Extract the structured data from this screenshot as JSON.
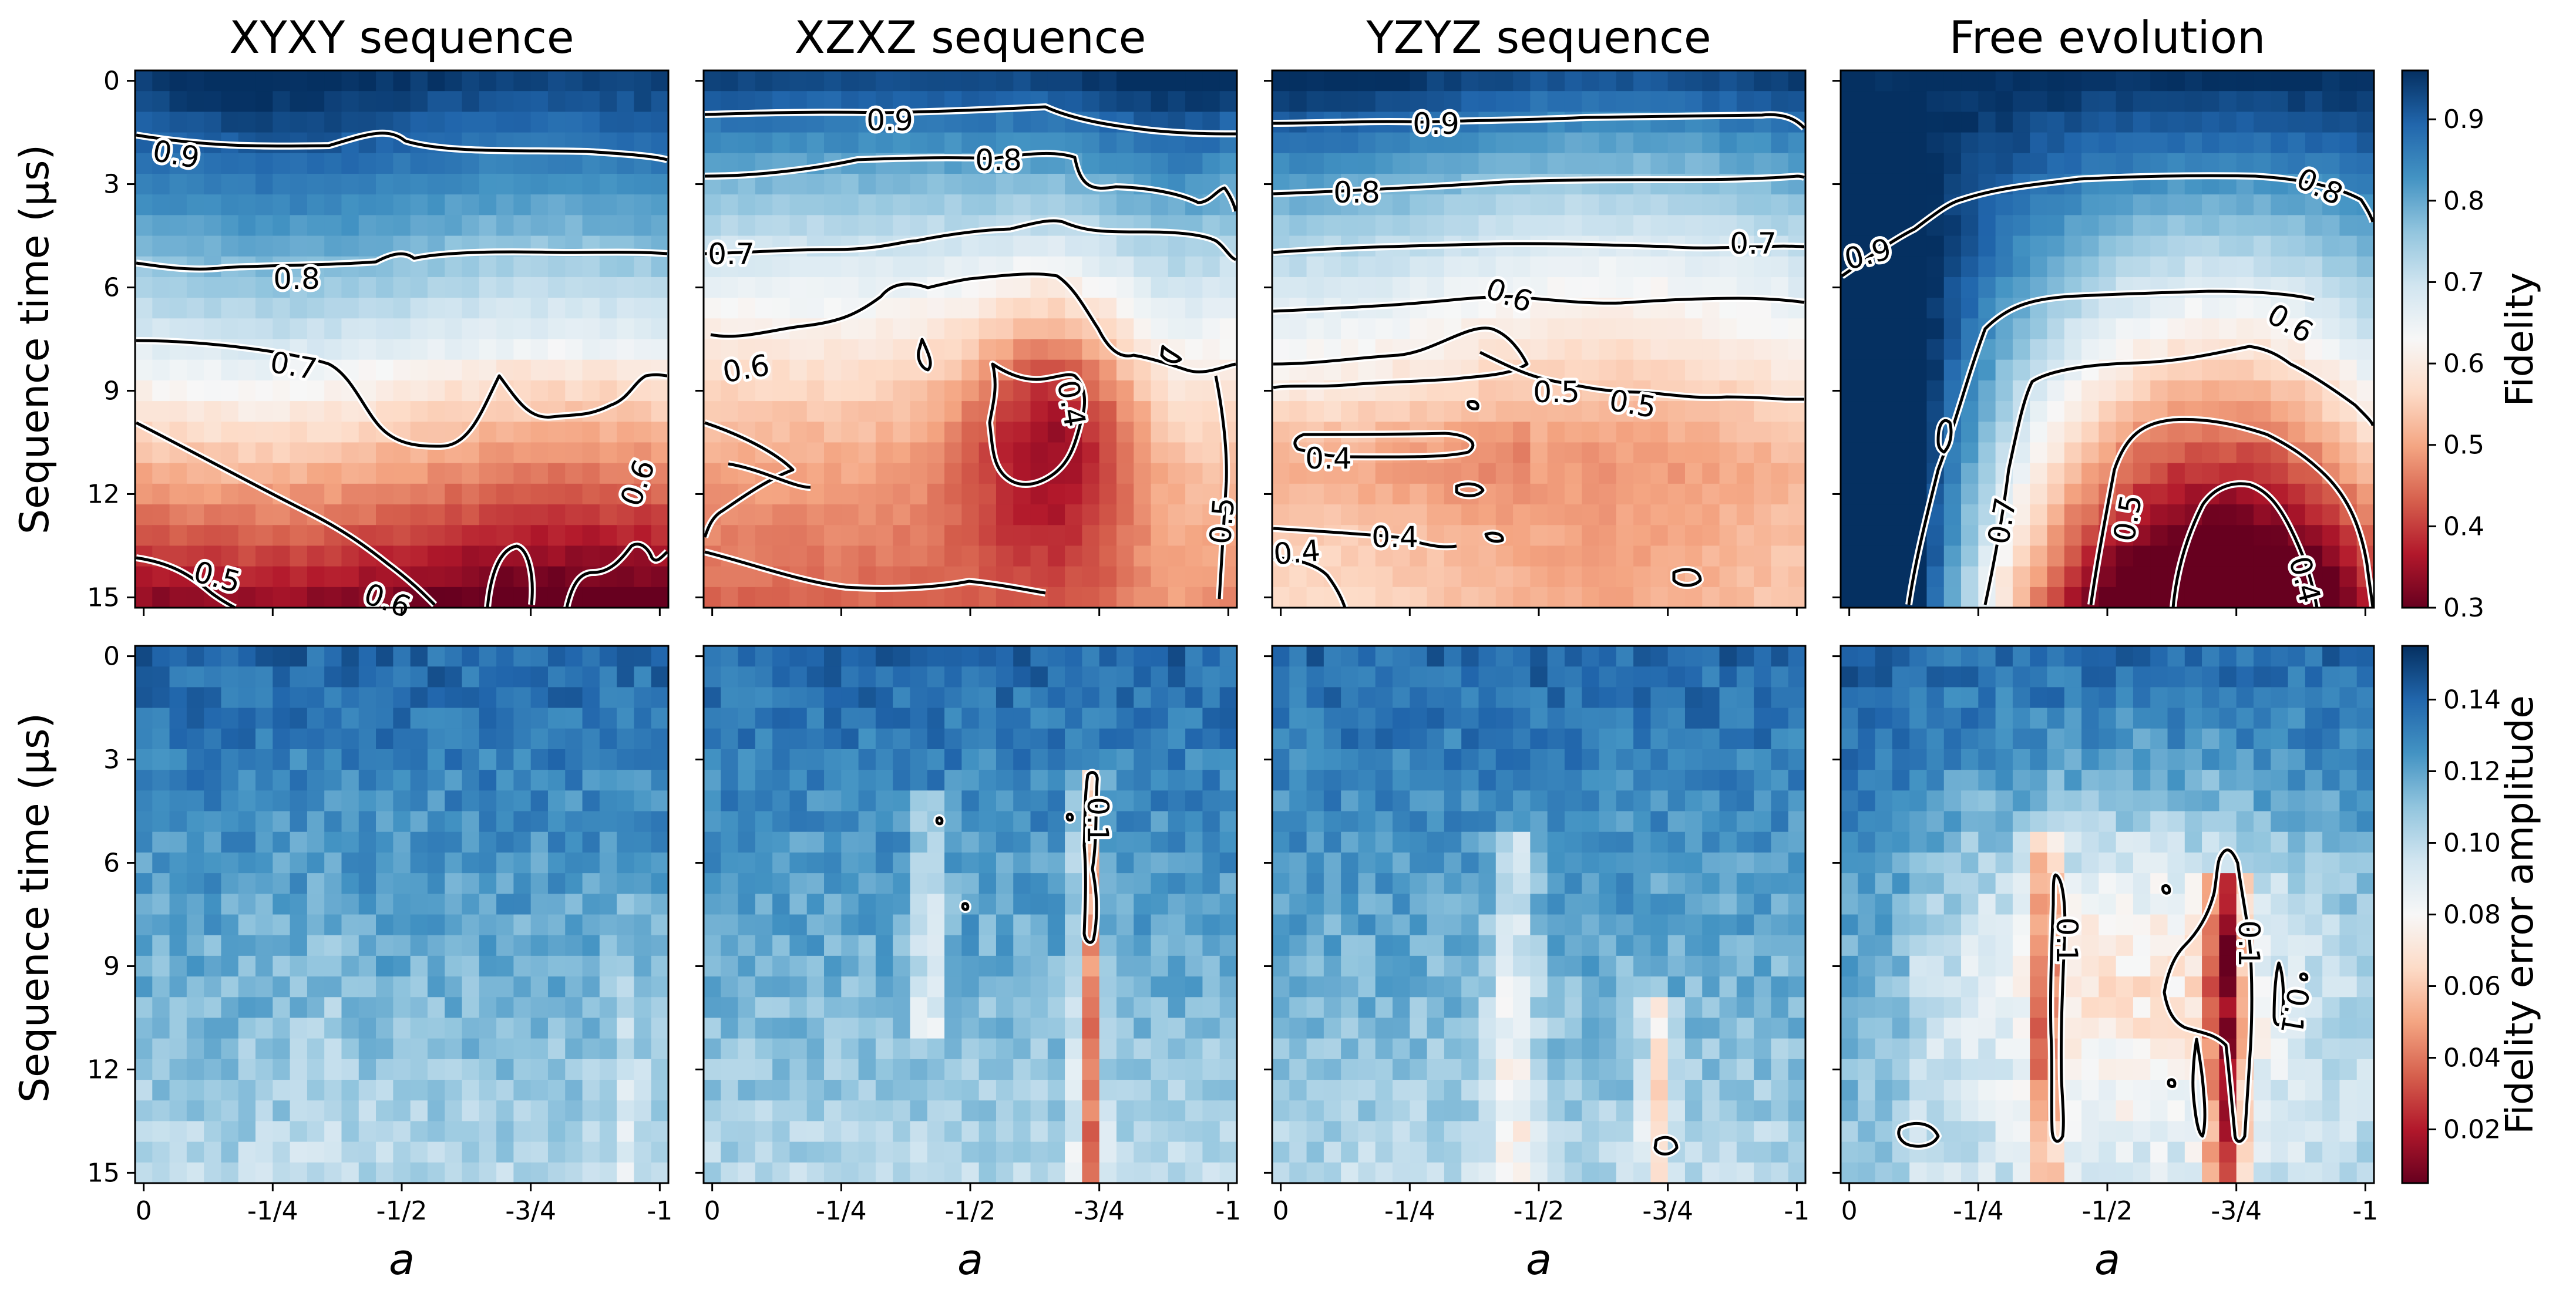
{
  "figure": {
    "panel_titles": [
      "XYXY sequence",
      "XZXZ sequence",
      "YZYZ sequence",
      "Free evolution"
    ],
    "colors": {
      "fidelity_low": "#67001f",
      "fidelity_mid": "#f7f7f7",
      "fidelity_high": "#053061",
      "contour_line": "#000000",
      "contour_halo": "#ffffff"
    }
  },
  "chart_data": [
    {
      "type": "heatmap",
      "row": "top",
      "title": "XYXY sequence",
      "metric": "Fidelity",
      "ylabel": "Sequence time (μs)",
      "xlabel": "a",
      "x_ticks": [
        "0",
        "-1/4",
        "-1/2",
        "-3/4",
        "-1"
      ],
      "y_ticks": [
        "0",
        "3",
        "6",
        "9",
        "12",
        "15"
      ],
      "xlim": [
        0,
        -1
      ],
      "ylim": [
        0,
        15
      ],
      "contour_levels": [
        0.5,
        0.6,
        0.7,
        0.8,
        0.9
      ],
      "contour_labels": [
        "0.9",
        "0.8",
        "0.7",
        "0.6",
        "0.6",
        "0.5"
      ]
    },
    {
      "type": "heatmap",
      "row": "top",
      "title": "XZXZ sequence",
      "metric": "Fidelity",
      "xlabel": "a",
      "x_ticks": [
        "0",
        "-1/4",
        "-1/2",
        "-3/4",
        "-1"
      ],
      "xlim": [
        0,
        -1
      ],
      "ylim": [
        0,
        15
      ],
      "contour_levels": [
        0.4,
        0.5,
        0.6,
        0.7,
        0.8,
        0.9
      ],
      "contour_labels": [
        "0.9",
        "0.8",
        "0.7",
        "0.6",
        "0.4",
        "0.5"
      ]
    },
    {
      "type": "heatmap",
      "row": "top",
      "title": "YZYZ sequence",
      "metric": "Fidelity",
      "xlabel": "a",
      "x_ticks": [
        "0",
        "-1/4",
        "-1/2",
        "-3/4",
        "-1"
      ],
      "xlim": [
        0,
        -1
      ],
      "ylim": [
        0,
        15
      ],
      "contour_levels": [
        0.4,
        0.5,
        0.6,
        0.7,
        0.8,
        0.9
      ],
      "contour_labels": [
        "0.9",
        "0.8",
        "0.7",
        "0.6",
        "0.5",
        "0.5",
        "0.4",
        "0.4",
        "0.4"
      ]
    },
    {
      "type": "heatmap",
      "row": "top",
      "title": "Free evolution",
      "metric": "Fidelity",
      "xlabel": "a",
      "x_ticks": [
        "0",
        "-1/4",
        "-1/2",
        "-3/4",
        "-1"
      ],
      "xlim": [
        0,
        -1
      ],
      "ylim": [
        0,
        15
      ],
      "contour_levels": [
        0.4,
        0.5,
        0.6,
        0.7,
        0.8,
        0.9
      ],
      "contour_labels": [
        "0.9",
        "0.8",
        "0.6",
        "0.7",
        "0.5",
        "0.4"
      ]
    },
    {
      "type": "heatmap",
      "row": "bottom",
      "panel": "XYXY sequence",
      "metric": "Fidelity error amplitude",
      "ylabel": "Sequence time (μs)",
      "xlabel": "a",
      "x_ticks": [
        "0",
        "-1/4",
        "-1/2",
        "-3/4",
        "-1"
      ],
      "y_ticks": [
        "0",
        "3",
        "6",
        "9",
        "12",
        "15"
      ],
      "xlim": [
        0,
        -1
      ],
      "ylim": [
        0,
        15
      ],
      "contour_levels": [],
      "contour_labels": []
    },
    {
      "type": "heatmap",
      "row": "bottom",
      "panel": "XZXZ sequence",
      "metric": "Fidelity error amplitude",
      "xlabel": "a",
      "x_ticks": [
        "0",
        "-1/4",
        "-1/2",
        "-3/4",
        "-1"
      ],
      "xlim": [
        0,
        -1
      ],
      "ylim": [
        0,
        15
      ],
      "contour_levels": [
        0.1
      ],
      "contour_labels": [
        "0.1"
      ]
    },
    {
      "type": "heatmap",
      "row": "bottom",
      "panel": "YZYZ sequence",
      "metric": "Fidelity error amplitude",
      "xlabel": "a",
      "x_ticks": [
        "0",
        "-1/4",
        "-1/2",
        "-3/4",
        "-1"
      ],
      "xlim": [
        0,
        -1
      ],
      "ylim": [
        0,
        15
      ],
      "contour_levels": [
        0.1
      ],
      "contour_labels": []
    },
    {
      "type": "heatmap",
      "row": "bottom",
      "panel": "Free evolution",
      "metric": "Fidelity error amplitude",
      "xlabel": "a",
      "x_ticks": [
        "0",
        "-1/4",
        "-1/2",
        "-3/4",
        "-1"
      ],
      "xlim": [
        0,
        -1
      ],
      "ylim": [
        0,
        15
      ],
      "contour_levels": [
        0.1
      ],
      "contour_labels": [
        "0.1",
        "0.1",
        "0.1"
      ]
    }
  ],
  "colorbars": {
    "fidelity": {
      "label": "Fidelity",
      "range": [
        0.3,
        0.96
      ],
      "ticks": [
        "0.3",
        "0.4",
        "0.5",
        "0.6",
        "0.7",
        "0.8",
        "0.9"
      ]
    },
    "error": {
      "label": "Fidelity error amplitude",
      "range": [
        0.005,
        0.155
      ],
      "ticks": [
        "0.02",
        "0.04",
        "0.06",
        "0.08",
        "0.10",
        "0.12",
        "0.14"
      ]
    }
  }
}
